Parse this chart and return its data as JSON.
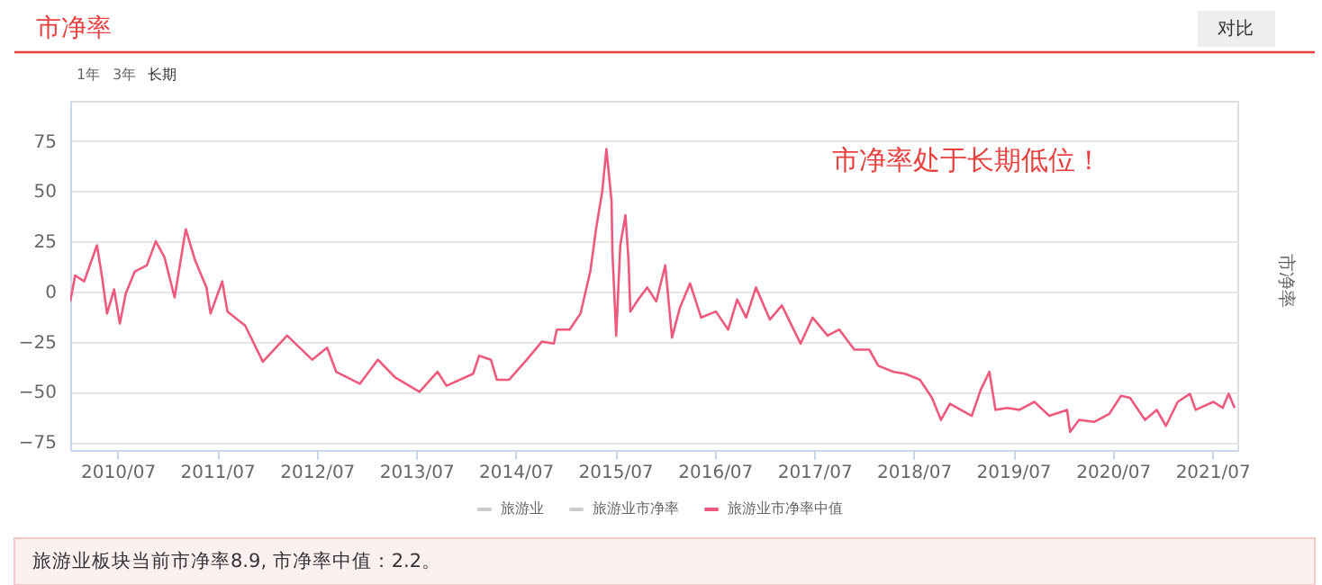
{
  "chart_data": {
    "type": "line",
    "title": "市净率",
    "ylabel": "市净率",
    "annotations": [
      "市净率处于长期低位！",
      "1年",
      "3年",
      "长期",
      "对比",
      "旅游业板块当前市净率8.9, 市净率中值：2.2。"
    ],
    "x": [
      "2010-01-08",
      "2010-01-26",
      "2010-02-28",
      "2010-04-16",
      "2010-05-05",
      "2010-05-23",
      "2010-06-18",
      "2010-07-09",
      "2010-07-31",
      "2010-09-02",
      "2010-10-16",
      "2010-11-18",
      "2010-12-20",
      "2011-01-26",
      "2011-03-08",
      "2011-04-10",
      "2011-05-23",
      "2011-06-07",
      "2011-07-20",
      "2011-08-08",
      "2011-10-12",
      "2011-12-16",
      "2012-03-14",
      "2012-06-14",
      "2012-08-08",
      "2012-09-10",
      "2012-12-06",
      "2013-02-10",
      "2013-04-16",
      "2013-07-13",
      "2013-09-17",
      "2013-10-20",
      "2014-01-26",
      "2014-02-17",
      "2014-04-01",
      "2014-04-23",
      "2014-06-07",
      "2014-08-11",
      "2014-10-05",
      "2014-11-18",
      "2014-11-29",
      "2015-01-15",
      "2015-02-24",
      "2015-04-01",
      "2015-04-23",
      "2015-05-15",
      "2015-05-30",
      "2015-06-18",
      "2015-06-21",
      "2015-07-05",
      "2015-07-20",
      "2015-08-08",
      "2015-08-19",
      "2015-08-26",
      "2015-09-24",
      "2015-10-27",
      "2015-11-29",
      "2016-01-01",
      "2016-01-26",
      "2016-02-24",
      "2016-04-01",
      "2016-05-12",
      "2016-07-05",
      "2016-08-19",
      "2016-09-21",
      "2016-10-24",
      "2016-11-29",
      "2017-01-19",
      "2017-03-04",
      "2017-05-12",
      "2017-06-25",
      "2017-08-19",
      "2017-10-01",
      "2017-11-25",
      "2018-01-19",
      "2018-02-21",
      "2018-04-16",
      "2018-05-30",
      "2018-07-24",
      "2018-09-06",
      "2018-10-09",
      "2018-11-11",
      "2019-01-30",
      "2019-03-04",
      "2019-04-05",
      "2019-04-27",
      "2019-06-10",
      "2019-07-24",
      "2019-09-17",
      "2019-11-11",
      "2020-01-15",
      "2020-01-26",
      "2020-02-28",
      "2020-04-23",
      "2020-06-18",
      "2020-07-31",
      "2020-09-02",
      "2020-10-27",
      "2020-12-09",
      "2021-01-12",
      "2021-02-24",
      "2021-04-10",
      "2021-05-01",
      "2021-07-05",
      "2021-08-08",
      "2021-08-30",
      "2021-09-21"
    ],
    "series": [
      {
        "name": "旅游业",
        "color": "#cccccc",
        "values": [
          null,
          null,
          null,
          null,
          null,
          null,
          null,
          null,
          null,
          null,
          null,
          null,
          null,
          null,
          null,
          null,
          null,
          null,
          null,
          null,
          null,
          null,
          null,
          null,
          null,
          null,
          null,
          null,
          null,
          null,
          null,
          null,
          null,
          null,
          null,
          null,
          null,
          null,
          null,
          null,
          null,
          null,
          null,
          null,
          null,
          null,
          null,
          null,
          null,
          null,
          null,
          null,
          null,
          null,
          null,
          null,
          null,
          null,
          null,
          null,
          null,
          null,
          null,
          null,
          null,
          null,
          null,
          null,
          null,
          null,
          null,
          null,
          null,
          null,
          null,
          null,
          null,
          null,
          null,
          null,
          null,
          null,
          null,
          null,
          null,
          null,
          null,
          null,
          null,
          null,
          null,
          null,
          null,
          null,
          null,
          null,
          null,
          null,
          null,
          null,
          null,
          null,
          null,
          null,
          null,
          null,
          null
        ]
      },
      {
        "name": "旅游业市净率",
        "color": "#cccccc",
        "values": [
          null,
          null,
          null,
          null,
          null,
          null,
          null,
          null,
          null,
          null,
          null,
          null,
          null,
          null,
          null,
          null,
          null,
          null,
          null,
          null,
          null,
          null,
          null,
          null,
          null,
          null,
          null,
          null,
          null,
          null,
          null,
          null,
          null,
          null,
          null,
          null,
          null,
          null,
          null,
          null,
          null,
          null,
          null,
          null,
          null,
          null,
          null,
          null,
          null,
          null,
          null,
          null,
          null,
          null,
          null,
          null,
          null,
          null,
          null,
          null,
          null,
          null,
          null,
          null,
          null,
          null,
          null,
          null,
          null,
          null,
          null,
          null,
          null,
          null,
          null,
          null,
          null,
          null,
          null,
          null,
          null,
          null,
          null,
          null,
          null,
          null,
          null,
          null,
          null,
          null,
          null,
          null,
          null,
          null,
          null,
          null,
          null,
          null,
          null,
          null,
          null,
          null,
          null,
          null,
          null,
          null,
          null
        ]
      },
      {
        "name": "旅游业市净率中值",
        "color": "#ee5a7e",
        "values": [
          -5,
          8,
          5,
          23,
          7,
          -11,
          1,
          -16,
          -1,
          10,
          13,
          25,
          17,
          -3,
          31,
          16,
          2,
          -11,
          5,
          -10,
          -17,
          -35,
          -22,
          -34,
          -28,
          -40,
          -46,
          -34,
          -43,
          -50,
          -40,
          -47,
          -41,
          -32,
          -34,
          -44,
          -44,
          -34,
          -25,
          -26,
          -19,
          -19,
          -11,
          10,
          32,
          50,
          71,
          45,
          20,
          -22,
          23,
          38,
          16,
          -10,
          -4,
          2,
          -5,
          13,
          -23,
          -8,
          4,
          -13,
          -10,
          -19,
          -4,
          -13,
          2,
          -14,
          -7,
          -26,
          -13,
          -22,
          -19,
          -29,
          -29,
          -37,
          -40,
          -41,
          -44,
          -53,
          -64,
          -56,
          -62,
          -49,
          -40,
          -59,
          -58,
          -59,
          -55,
          -62,
          -59,
          -70,
          -64,
          -65,
          -61,
          -52,
          -53,
          -64,
          -59,
          -67,
          -55,
          -51,
          -59,
          -55,
          -58,
          -51,
          -58
        ]
      }
    ],
    "xlim": [
      "2010-01-08",
      "2021-10-01"
    ],
    "xticks": [
      {
        "value": "2010-07-01",
        "label": "2010/07"
      },
      {
        "value": "2011-07-01",
        "label": "2011/07"
      },
      {
        "value": "2012-07-01",
        "label": "2012/07"
      },
      {
        "value": "2013-07-01",
        "label": "2013/07"
      },
      {
        "value": "2014-07-01",
        "label": "2014/07"
      },
      {
        "value": "2015-07-01",
        "label": "2015/07"
      },
      {
        "value": "2016-07-01",
        "label": "2016/07"
      },
      {
        "value": "2017-07-01",
        "label": "2017/07"
      },
      {
        "value": "2018-07-01",
        "label": "2018/07"
      },
      {
        "value": "2019-07-01",
        "label": "2019/07"
      },
      {
        "value": "2020-07-01",
        "label": "2020/07"
      },
      {
        "value": "2021-07-01",
        "label": "2021/07"
      }
    ],
    "ylim": [
      -79,
      95
    ],
    "yticks": [
      -75,
      -50,
      -25,
      0,
      25,
      50,
      75
    ],
    "grid": "y",
    "legend": "bottom",
    "line_style": "solid"
  }
}
